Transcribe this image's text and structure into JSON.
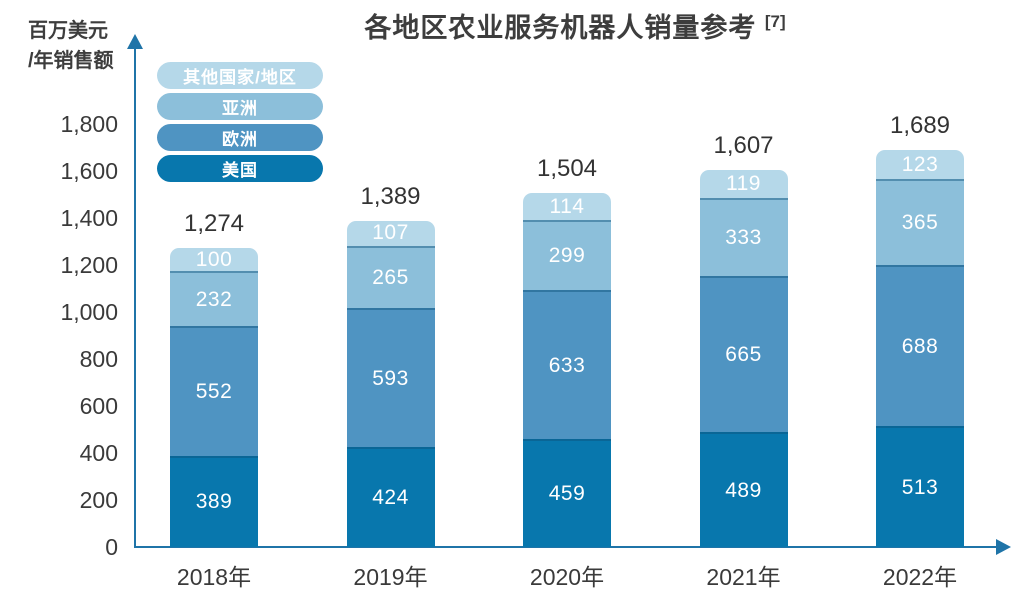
{
  "title": {
    "text": "各地区农业服务机器人销量参考",
    "superscript": "[7]"
  },
  "y_axis_unit": {
    "line1": "百万美元",
    "line2": "/年销售额"
  },
  "chart_data": {
    "type": "bar",
    "stacked": true,
    "title": "各地区农业服务机器人销量参考 [7]",
    "ylabel": "百万美元/年销售额",
    "xlabel": "",
    "categories": [
      "2018年",
      "2019年",
      "2020年",
      "2021年",
      "2022年"
    ],
    "series": [
      {
        "name": "美国",
        "color": "#0877ad",
        "values": [
          389,
          424,
          459,
          489,
          513
        ]
      },
      {
        "name": "欧洲",
        "color": "#4f94c2",
        "values": [
          552,
          593,
          633,
          665,
          688
        ]
      },
      {
        "name": "亚洲",
        "color": "#8cbfda",
        "values": [
          232,
          265,
          299,
          333,
          365
        ]
      },
      {
        "name": "其他国家/地区",
        "color": "#b5d8e9",
        "values": [
          100,
          107,
          114,
          119,
          123
        ]
      }
    ],
    "totals": [
      "1,274",
      "1,389",
      "1,504",
      "1,607",
      "1,689"
    ],
    "y_ticks": [
      "1,800",
      "1,600",
      "1,400",
      "1,200",
      "1,000",
      "800",
      "600",
      "400",
      "200",
      "0"
    ],
    "ylim": [
      0,
      1800
    ],
    "grid": false,
    "legend_position": "top-left",
    "legend_order_top_to_bottom": [
      "其他国家/地区",
      "亚洲",
      "欧洲",
      "美国"
    ],
    "colors": {
      "axis": "#1f74a8",
      "text": "#3a3a3a",
      "segment_label": "#ffffff"
    }
  }
}
